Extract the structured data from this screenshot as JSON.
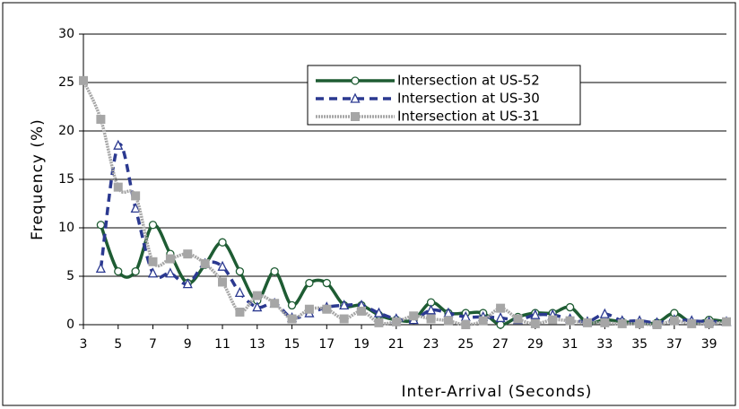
{
  "chart_data": {
    "type": "line",
    "xlabel": "Inter-Arrival (Seconds)",
    "ylabel": "Frequency (%)",
    "x": [
      3,
      4,
      5,
      6,
      7,
      8,
      9,
      10,
      11,
      12,
      13,
      14,
      15,
      16,
      17,
      18,
      19,
      20,
      21,
      22,
      23,
      24,
      25,
      26,
      27,
      28,
      29,
      30,
      31,
      32,
      33,
      34,
      35,
      36,
      37,
      38,
      39,
      40
    ],
    "xlim": [
      3,
      40
    ],
    "xticks": [
      3,
      5,
      7,
      9,
      11,
      13,
      15,
      17,
      19,
      21,
      23,
      25,
      27,
      29,
      31,
      33,
      35,
      37,
      39
    ],
    "ylim": [
      0,
      30
    ],
    "yticks": [
      0,
      5,
      10,
      15,
      20,
      25,
      30
    ],
    "grid": true,
    "legend": "top-center",
    "series": [
      {
        "name": "Intersection at US-52",
        "color": "#1e5c33",
        "marker": "circle",
        "values": [
          null,
          10.3,
          5.5,
          5.5,
          10.3,
          7.3,
          4.3,
          6.2,
          8.5,
          5.5,
          2.5,
          5.5,
          2,
          4.3,
          4.3,
          2,
          2,
          1,
          0.5,
          0.5,
          2.3,
          1.2,
          1.2,
          1.2,
          0,
          0.8,
          1.2,
          1.2,
          1.8,
          0.2,
          0.5,
          0.3,
          0.2,
          0.2,
          1.2,
          0.2,
          0.5,
          0.3
        ]
      },
      {
        "name": "Intersection at US-30",
        "color": "#2b3990",
        "marker": "triangle",
        "values": [
          null,
          5.8,
          18.5,
          12,
          5.3,
          5.3,
          4.2,
          6.3,
          6,
          3.3,
          1.8,
          2.2,
          0.7,
          1.2,
          1.8,
          2,
          2,
          1.2,
          0.6,
          0.5,
          1.5,
          1.2,
          0.8,
          0.8,
          0.7,
          0.5,
          1,
          1,
          0.6,
          0.3,
          1.1,
          0.4,
          0.4,
          0.2,
          0.5,
          0.4,
          0.3,
          0.3
        ]
      },
      {
        "name": "Intersection at US-31",
        "color": "#a6a6a6",
        "marker": "square",
        "values": [
          25.2,
          21.2,
          14.2,
          13.3,
          6.5,
          6.8,
          7.3,
          6.3,
          4.4,
          1.3,
          3,
          2.2,
          0.6,
          1.6,
          1.6,
          0.6,
          1.4,
          0.2,
          0.3,
          0.9,
          0.6,
          0.4,
          0,
          0.4,
          1.7,
          0.6,
          0.1,
          0.5,
          0.4,
          0.2,
          0.2,
          0.1,
          0.1,
          0,
          0.4,
          0.1,
          0.1,
          0.3
        ]
      }
    ]
  }
}
